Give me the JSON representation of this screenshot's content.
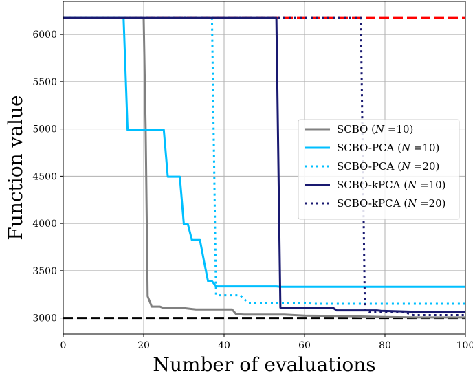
{
  "chart_data": {
    "type": "line",
    "title": "",
    "xlabel": "Number of evaluations",
    "ylabel": "Function value",
    "xlim": [
      0,
      100
    ],
    "ylim": [
      2830,
      6350
    ],
    "x_ticks": [
      0,
      20,
      40,
      60,
      80,
      100
    ],
    "x_tick_labels": [
      "0",
      "20",
      "40",
      "60",
      "80",
      "100"
    ],
    "y_ticks": [
      3000,
      3500,
      4000,
      4500,
      5000,
      5500,
      6000
    ],
    "y_tick_labels": [
      "3000",
      "3500",
      "4000",
      "4500",
      "5000",
      "5500",
      "6000"
    ],
    "grid": true,
    "legend_placement": "center-right",
    "reference_lines": [
      {
        "y": 6175,
        "color": "#ff0000",
        "style": "dashed"
      },
      {
        "y": 3000,
        "color": "#000000",
        "style": "dashed"
      }
    ],
    "series": [
      {
        "name": "SCBO (N =10)",
        "legend": {
          "prefix": "SCBO (",
          "var": "N",
          "suffix": " =10)"
        },
        "color": "#808080",
        "style": "solid",
        "x": [
          0,
          20,
          20.5,
          21,
          22,
          24,
          25,
          30,
          32,
          33,
          38,
          42,
          43,
          45,
          55,
          60,
          70,
          75,
          80,
          88,
          100
        ],
        "y": [
          6175,
          6175,
          5000,
          3230,
          3120,
          3120,
          3105,
          3105,
          3095,
          3090,
          3090,
          3090,
          3040,
          3035,
          3035,
          3025,
          3020,
          3015,
          3010,
          3005,
          3005
        ]
      },
      {
        "name": "SCBO-PCA (N =10)",
        "legend": {
          "prefix": "SCBO-PCA (",
          "var": "N",
          "suffix": " =10)"
        },
        "color": "#00bfff",
        "style": "solid",
        "x": [
          0,
          15,
          16,
          25,
          26,
          29,
          30,
          31,
          32,
          34,
          35,
          36,
          37,
          38,
          53,
          54,
          100
        ],
        "y": [
          6175,
          6175,
          4990,
          4990,
          4495,
          4495,
          3990,
          3990,
          3825,
          3825,
          3600,
          3390,
          3390,
          3335,
          3335,
          3330,
          3330
        ]
      },
      {
        "name": "SCBO-PCA (N =20)",
        "legend": {
          "prefix": "SCBO-PCA (",
          "var": "N",
          "suffix": " =20)"
        },
        "color": "#00bfff",
        "style": "dotted",
        "x": [
          0,
          37,
          38,
          44,
          46,
          60,
          62,
          100
        ],
        "y": [
          6175,
          6175,
          3240,
          3240,
          3160,
          3160,
          3150,
          3150
        ]
      },
      {
        "name": "SCBO-kPCA (N =10)",
        "legend": {
          "prefix": "SCBO-kPCA (",
          "var": "N",
          "suffix": " =10)"
        },
        "color": "#191970",
        "style": "solid",
        "x": [
          0,
          53,
          54,
          67,
          68,
          78,
          79,
          88,
          100
        ],
        "y": [
          6175,
          6175,
          3110,
          3110,
          3080,
          3080,
          3075,
          3065,
          3065
        ]
      },
      {
        "name": "SCBO-kPCA (N =20)",
        "legend": {
          "prefix": "SCBO-kPCA (",
          "var": "N",
          "suffix": " =20)"
        },
        "color": "#191970",
        "style": "dotted",
        "x": [
          0,
          74,
          75,
          76,
          85,
          87,
          100
        ],
        "y": [
          6175,
          6175,
          3090,
          3060,
          3060,
          3030,
          3030
        ]
      }
    ]
  }
}
